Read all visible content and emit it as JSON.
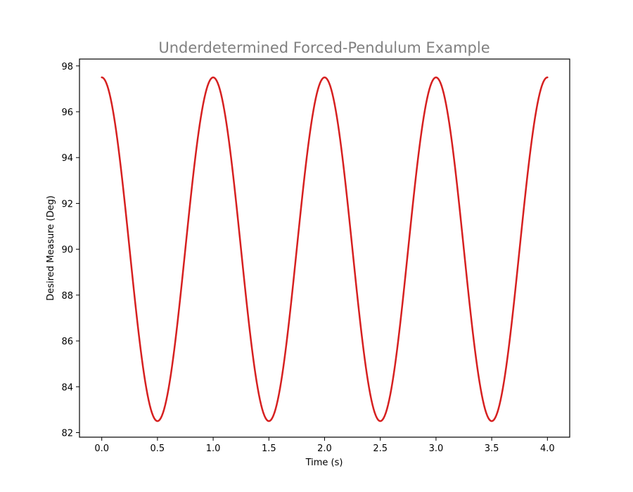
{
  "chart_data": {
    "type": "line",
    "title": "Underdetermined Forced-Pendulum Example",
    "xlabel": "Time (s)",
    "ylabel": "Desired Measure (Deg)",
    "xlim": [
      -0.2,
      4.2
    ],
    "ylim": [
      81.8,
      98.3
    ],
    "xticks": [
      0.0,
      0.5,
      1.0,
      1.5,
      2.0,
      2.5,
      3.0,
      3.5,
      4.0
    ],
    "xtick_labels": [
      "0.0",
      "0.5",
      "1.0",
      "1.5",
      "2.0",
      "2.5",
      "3.0",
      "3.5",
      "4.0"
    ],
    "yticks": [
      82,
      84,
      86,
      88,
      90,
      92,
      94,
      96,
      98
    ],
    "ytick_labels": [
      "82",
      "84",
      "86",
      "88",
      "90",
      "92",
      "94",
      "96",
      "98"
    ],
    "grid": false,
    "series": [
      {
        "color": "#d62020",
        "x": [
          0.0,
          0.1,
          0.2,
          0.3,
          0.4,
          0.5,
          0.6,
          0.7,
          0.8,
          0.9,
          1.0,
          1.1,
          1.2,
          1.3,
          1.4,
          1.5,
          1.6,
          1.7,
          1.8,
          1.9,
          2.0,
          2.1,
          2.2,
          2.3,
          2.4,
          2.5,
          2.6,
          2.7,
          2.8,
          2.9,
          3.0,
          3.1,
          3.2,
          3.3,
          3.4,
          3.5,
          3.6,
          3.7,
          3.8,
          3.9,
          4.0
        ],
        "y": [
          97.5,
          96.07,
          92.32,
          87.68,
          83.93,
          82.5,
          83.93,
          87.68,
          92.32,
          96.07,
          97.5,
          96.07,
          92.32,
          87.68,
          83.93,
          82.5,
          83.93,
          87.68,
          92.32,
          96.07,
          97.5,
          96.07,
          92.32,
          87.68,
          83.93,
          82.5,
          83.93,
          87.68,
          92.32,
          96.07,
          97.5,
          96.07,
          92.32,
          87.68,
          83.93,
          82.5,
          83.93,
          87.68,
          92.32,
          96.07,
          97.5
        ]
      }
    ]
  }
}
